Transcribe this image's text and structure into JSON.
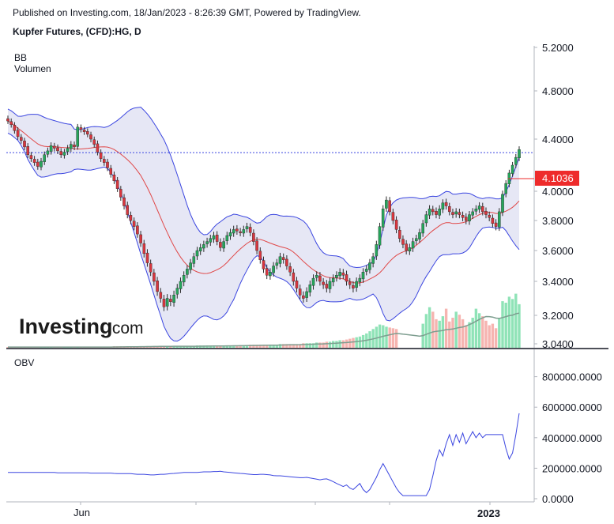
{
  "header": {
    "published": "Published on Investing.com, 18/Jan/2023 - 8:26:39 GMT, Powered by TradingView.",
    "title": "Kupfer Futures, (CFD):HG, D"
  },
  "logo": {
    "text": "Investing",
    "suffix": ".com"
  },
  "colors": {
    "up": "#26a65b",
    "down": "#d9363e",
    "bb_band": "#3b46e0",
    "bb_fill": "#e6e7f5",
    "basis": "#e04848",
    "obv": "#3b46e0",
    "vol_up": "#8fe3b7",
    "vol_down": "#f6b4b0",
    "vol_ma": "#7e9e90",
    "last_price_bg": "#ee2b2b"
  },
  "chart_data": [
    {
      "type": "candlestick",
      "indicators": [
        "BB",
        "Volumen"
      ],
      "price_axis_ticks": [
        "5.2000",
        "4.8000",
        "4.4000",
        "4.0000",
        "3.8000",
        "3.6000",
        "3.4000",
        "3.2000",
        "3.0400"
      ],
      "price_axis_values": [
        5.2,
        4.8,
        4.4,
        4.0,
        3.8,
        3.6,
        3.4,
        3.2,
        3.04
      ],
      "last_price": "4.1036",
      "last_price_value": 4.1036,
      "current_price_value": 4.296,
      "x_labels": [
        "Jun",
        "2023"
      ],
      "close": [
        4.55,
        4.52,
        4.47,
        4.42,
        4.39,
        4.34,
        4.28,
        4.25,
        4.22,
        4.19,
        4.23,
        4.28,
        4.31,
        4.35,
        4.33,
        4.31,
        4.28,
        4.3,
        4.33,
        4.36,
        4.34,
        4.5,
        4.48,
        4.46,
        4.44,
        4.4,
        4.36,
        4.3,
        4.25,
        4.22,
        4.18,
        4.13,
        4.08,
        4.02,
        3.96,
        3.9,
        3.84,
        3.8,
        3.76,
        3.71,
        3.65,
        3.58,
        3.52,
        3.46,
        3.4,
        3.34,
        3.3,
        3.25,
        3.3,
        3.28,
        3.32,
        3.36,
        3.4,
        3.44,
        3.48,
        3.52,
        3.56,
        3.6,
        3.62,
        3.64,
        3.66,
        3.68,
        3.7,
        3.66,
        3.62,
        3.66,
        3.7,
        3.72,
        3.74,
        3.73,
        3.72,
        3.74,
        3.76,
        3.72,
        3.66,
        3.6,
        3.54,
        3.48,
        3.44,
        3.46,
        3.5,
        3.52,
        3.56,
        3.54,
        3.5,
        3.46,
        3.4,
        3.36,
        3.32,
        3.3,
        3.34,
        3.38,
        3.42,
        3.44,
        3.4,
        3.38,
        3.36,
        3.4,
        3.42,
        3.44,
        3.46,
        3.44,
        3.4,
        3.38,
        3.36,
        3.4,
        3.42,
        3.46,
        3.48,
        3.52,
        3.56,
        3.64,
        3.76,
        3.88,
        3.94,
        3.86,
        3.8,
        3.74,
        3.68,
        3.64,
        3.6,
        3.62,
        3.66,
        3.68,
        3.72,
        3.78,
        3.84,
        3.88,
        3.86,
        3.84,
        3.88,
        3.92,
        3.9,
        3.86,
        3.84,
        3.86,
        3.84,
        3.82,
        3.8,
        3.84,
        3.86,
        3.88,
        3.9,
        3.86,
        3.84,
        3.82,
        3.78,
        3.76,
        3.86,
        3.98,
        4.06,
        4.14,
        4.2,
        4.26,
        4.32
      ],
      "volume": [
        0.01,
        0.01,
        0.01,
        0.01,
        0.01,
        0.01,
        0.01,
        0.01,
        0.01,
        0.01,
        0.01,
        0.01,
        0.01,
        0.01,
        0.01,
        0.01,
        0.01,
        0.01,
        0.01,
        0.01,
        0.01,
        0.01,
        0.01,
        0.01,
        0.01,
        0.01,
        0.01,
        0.01,
        0.01,
        0.01,
        0.01,
        0.01,
        0.02,
        0.02,
        0.02,
        0.02,
        0.02,
        0.02,
        0.02,
        0.02,
        0.02,
        0.02,
        0.02,
        0.02,
        0.02,
        0.02,
        0.02,
        0.02,
        0.02,
        0.02,
        0.02,
        0.02,
        0.02,
        0.02,
        0.02,
        0.02,
        0.02,
        0.03,
        0.03,
        0.03,
        0.03,
        0.03,
        0.03,
        0.03,
        0.03,
        0.03,
        0.03,
        0.03,
        0.03,
        0.03,
        0.03,
        0.03,
        0.03,
        0.04,
        0.04,
        0.04,
        0.04,
        0.04,
        0.04,
        0.04,
        0.04,
        0.04,
        0.05,
        0.05,
        0.05,
        0.05,
        0.05,
        0.05,
        0.05,
        0.06,
        0.06,
        0.06,
        0.06,
        0.07,
        0.07,
        0.07,
        0.08,
        0.08,
        0.09,
        0.09,
        0.1,
        0.1,
        0.11,
        0.12,
        0.13,
        0.14,
        0.15,
        0.17,
        0.19,
        0.22,
        0.25,
        0.28,
        0.31,
        0.3,
        0.28,
        0.27,
        0.26,
        0.25,
        0,
        0,
        0,
        0,
        0,
        0,
        0,
        0.32,
        0.45,
        0.54,
        0.48,
        0.38,
        0.36,
        0.42,
        0.52,
        0.35,
        0.4,
        0.48,
        0.44,
        0.38,
        0.3,
        0.34,
        0.4,
        0.52,
        0.46,
        0.42,
        0.36,
        0.3,
        0.32,
        0.26,
        0.4,
        0.62,
        0.6,
        0.68,
        0.65,
        0.72,
        0.58
      ],
      "obv_axis_ticks": [
        "800000.0000",
        "600000.0000",
        "400000.0000",
        "200000.0000",
        "0.0000"
      ],
      "obv_axis_values": [
        800000,
        600000,
        400000,
        200000,
        0
      ],
      "obv_label": "OBV",
      "obv": [
        172000,
        172000,
        172000,
        172000,
        172000,
        172000,
        172000,
        172000,
        172000,
        172000,
        172000,
        172000,
        172000,
        172000,
        172000,
        170000,
        170000,
        170000,
        170000,
        170000,
        170000,
        170000,
        170000,
        170000,
        170000,
        168000,
        168000,
        168000,
        168000,
        168000,
        168000,
        168000,
        166000,
        165000,
        165000,
        165000,
        164000,
        164000,
        162000,
        160000,
        160000,
        160000,
        158000,
        156000,
        156000,
        158000,
        160000,
        160000,
        162000,
        164000,
        166000,
        168000,
        170000,
        172000,
        172000,
        172000,
        172000,
        172000,
        174000,
        176000,
        176000,
        176000,
        178000,
        178000,
        180000,
        176000,
        174000,
        172000,
        170000,
        168000,
        166000,
        164000,
        162000,
        160000,
        158000,
        158000,
        160000,
        160000,
        158000,
        156000,
        152000,
        150000,
        150000,
        148000,
        146000,
        144000,
        142000,
        140000,
        138000,
        138000,
        140000,
        136000,
        132000,
        128000,
        124000,
        128000,
        130000,
        122000,
        112000,
        100000,
        90000,
        80000,
        90000,
        70000,
        60000,
        80000,
        100000,
        60000,
        40000,
        60000,
        100000,
        140000,
        190000,
        230000,
        190000,
        150000,
        110000,
        70000,
        40000,
        20000,
        20000,
        20000,
        20000,
        20000,
        20000,
        20000,
        20000,
        60000,
        150000,
        250000,
        320000,
        280000,
        360000,
        420000,
        350000,
        420000,
        370000,
        430000,
        360000,
        400000,
        440000,
        400000,
        430000,
        400000,
        420000,
        420000,
        420000,
        420000,
        420000,
        420000,
        330000,
        260000,
        300000,
        420000,
        560000,
        660000,
        760000,
        850000,
        850000,
        850000
      ]
    }
  ]
}
